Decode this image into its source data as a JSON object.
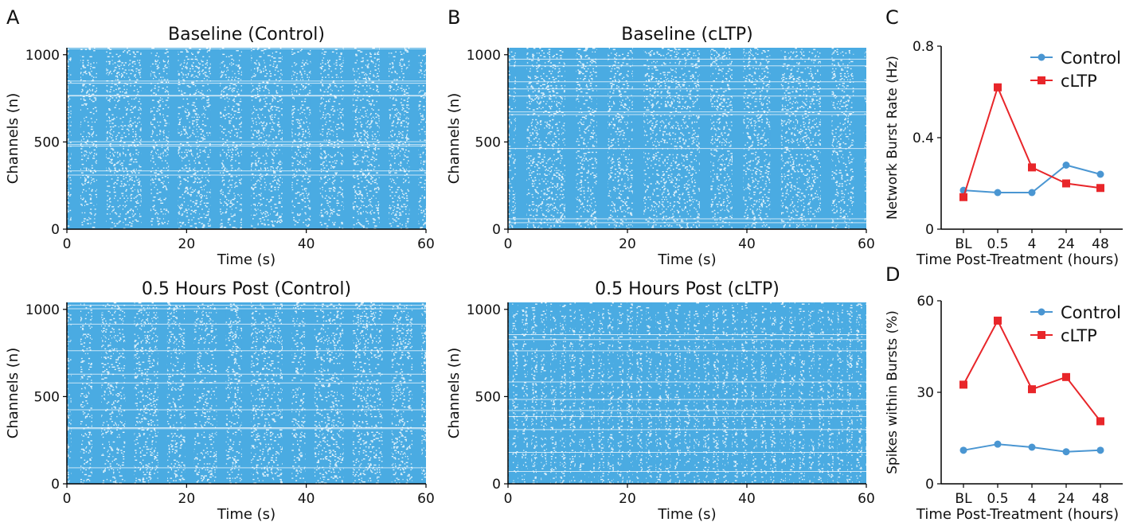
{
  "chart_data": [
    {
      "id": "A-top",
      "panel_letter": "A",
      "type": "raster",
      "title": "Baseline (Control)",
      "xlabel": "Time (s)",
      "ylabel": "Channels (n)",
      "xlim": [
        0,
        60
      ],
      "ylim": [
        0,
        1040
      ],
      "xticks": [
        0,
        20,
        40,
        60
      ],
      "yticks": [
        0,
        500,
        1000
      ],
      "burst_times": [
        1.5,
        5.8,
        13.2,
        17.8,
        24.8,
        30.0,
        36.8,
        41.5,
        47.0,
        53.0,
        58.0
      ],
      "burst_duration": 1.5,
      "color": "#4aabe2"
    },
    {
      "id": "B-top",
      "panel_letter": "B",
      "type": "raster",
      "title": "Baseline (cLTP)",
      "xlabel": "Time (s)",
      "ylabel": "Channels (n)",
      "xlim": [
        0,
        60
      ],
      "ylim": [
        0,
        1040
      ],
      "xticks": [
        0,
        20,
        40,
        60
      ],
      "yticks": [
        0,
        500,
        1000
      ],
      "burst_times": [
        2.2,
        10.5,
        15.8,
        21.8,
        33.0,
        38.5,
        44.8,
        53.3,
        58.8
      ],
      "burst_duration": 1.8,
      "color": "#4aabe2"
    },
    {
      "id": "A-bottom",
      "type": "raster",
      "title": "0.5 Hours Post (Control)",
      "xlabel": "Time (s)",
      "ylabel": "Channels (n)",
      "xlim": [
        0,
        60
      ],
      "ylim": [
        0,
        1040
      ],
      "xticks": [
        0,
        20,
        40,
        60
      ],
      "yticks": [
        0,
        500,
        1000
      ],
      "burst_times": [
        1.5,
        5.0,
        10.5,
        16.0,
        20.5,
        25.8,
        30.0,
        36.8,
        40.6,
        47.0,
        53.5,
        58.5
      ],
      "burst_duration": 1.5,
      "color": "#4aabe2"
    },
    {
      "id": "B-bottom",
      "type": "raster",
      "title": "0.5 Hours Post (cLTP)",
      "xlabel": "Time (s)",
      "ylabel": "Channels (n)",
      "xlim": [
        0,
        60
      ],
      "ylim": [
        0,
        1040
      ],
      "xticks": [
        0,
        20,
        40,
        60
      ],
      "yticks": [
        0,
        500,
        1000
      ],
      "burst_interval": 1.6,
      "burst_duration": 0.6,
      "color": "#4aabe2"
    },
    {
      "id": "C",
      "panel_letter": "C",
      "type": "line",
      "categories": [
        "BL",
        "0.5",
        "4",
        "24",
        "48"
      ],
      "xlabel": "Time Post-Treatment (hours)",
      "ylabel": "Network Burst Rate (Hz)",
      "ylim": [
        0,
        0.8
      ],
      "yticks": [
        0,
        0.4,
        0.8
      ],
      "ytick_labels": [
        "0",
        "0.4",
        "0.8"
      ],
      "legend": "top-right",
      "series": [
        {
          "name": "Control",
          "values": [
            0.17,
            0.16,
            0.16,
            0.28,
            0.24
          ],
          "color": "#4a96d2",
          "marker": "circle"
        },
        {
          "name": "cLTP",
          "values": [
            0.14,
            0.62,
            0.27,
            0.2,
            0.18
          ],
          "color": "#e8262a",
          "marker": "square"
        }
      ]
    },
    {
      "id": "D",
      "panel_letter": "D",
      "type": "line",
      "categories": [
        "BL",
        "0.5",
        "4",
        "24",
        "48"
      ],
      "xlabel": "Time Post-Treatment (hours)",
      "ylabel": "Spikes within Bursts (%)",
      "ylim": [
        0,
        60
      ],
      "yticks": [
        0,
        30,
        60
      ],
      "ytick_labels": [
        "0",
        "30",
        "60"
      ],
      "legend": "top-right",
      "series": [
        {
          "name": "Control",
          "values": [
            11,
            13,
            12,
            10.5,
            11
          ],
          "color": "#4a96d2",
          "marker": "circle"
        },
        {
          "name": "cLTP",
          "values": [
            32.5,
            53.5,
            31,
            35,
            20.5
          ],
          "color": "#e8262a",
          "marker": "square"
        }
      ]
    }
  ]
}
